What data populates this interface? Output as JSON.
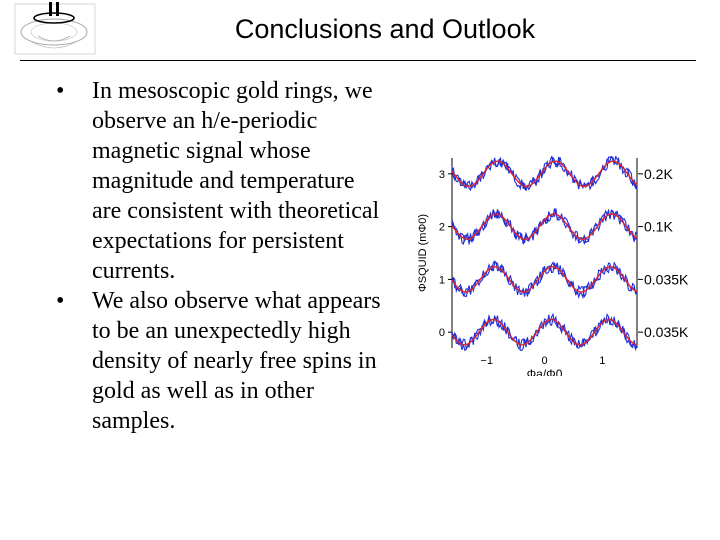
{
  "slide": {
    "title": "Conclusions and Outlook",
    "bullets": [
      "In mesoscopic gold rings, we observe an h/e-periodic magnetic signal whose magnitude and temperature are consistent with theoretical expectations for persistent currents.",
      "We also observe what appears to be an unexpectedly high density of nearly free spins in gold as well as in other samples."
    ],
    "bullet_glyph": "•"
  },
  "chart_data": {
    "type": "line",
    "xlabel": "Φa/Φ0",
    "ylabel": "ΦSQUID (mΦ0)",
    "xlim": [
      -1.6,
      1.6
    ],
    "ylim": [
      -0.3,
      3.3
    ],
    "x_ticks": [
      "-1",
      "0",
      "1"
    ],
    "y_ticks": [
      "0",
      "1",
      "2",
      "3"
    ],
    "curve_labels": [
      "0.2K",
      "0.1K",
      "0.035K",
      "0.035K"
    ],
    "offsets": [
      3,
      2,
      1,
      0
    ],
    "period_phi0": 1,
    "colors": {
      "data": "#1f2fd6",
      "fit": "#e0242c",
      "axis": "#000000"
    }
  }
}
